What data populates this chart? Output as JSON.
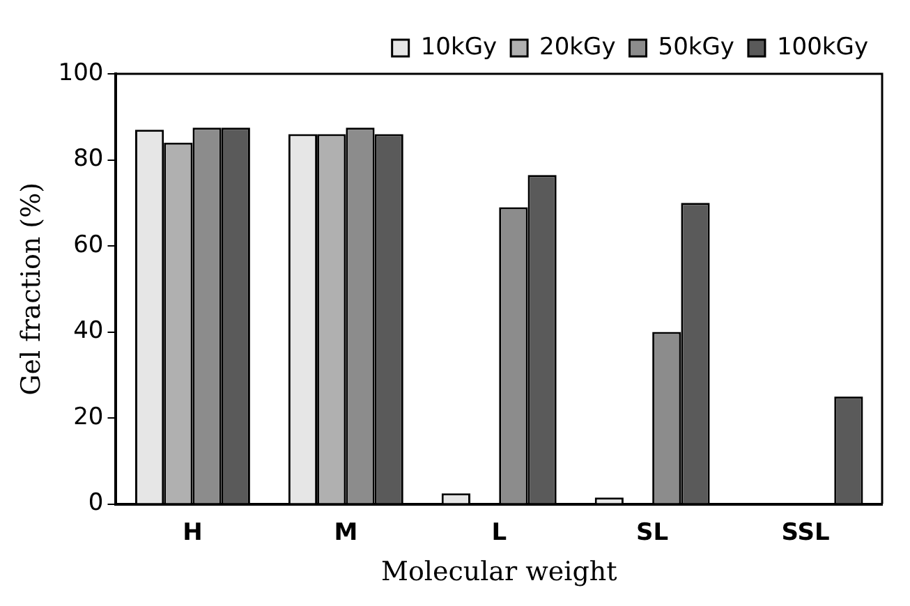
{
  "chart_data": {
    "type": "bar",
    "xlabel": "Molecular weight",
    "ylabel": "Gel fraction (%)",
    "categories": [
      "H",
      "M",
      "L",
      "SL",
      "SSL"
    ],
    "series": [
      {
        "name": "10kGy",
        "color": "#e6e6e6",
        "values": [
          87,
          86,
          2.5,
          1.5,
          0
        ]
      },
      {
        "name": "20kGy",
        "color": "#b0b0b0",
        "values": [
          84,
          86,
          0,
          0,
          0
        ]
      },
      {
        "name": "50kGy",
        "color": "#8c8c8c",
        "values": [
          87.5,
          87.5,
          69,
          40,
          0
        ]
      },
      {
        "name": "100kGy",
        "color": "#5a5a5a",
        "values": [
          87.5,
          86,
          76.5,
          70,
          25
        ]
      }
    ],
    "ylim": [
      0,
      100
    ],
    "yticks": [
      0,
      20,
      40,
      60,
      80,
      100
    ],
    "grid": false,
    "legend": "top right"
  }
}
